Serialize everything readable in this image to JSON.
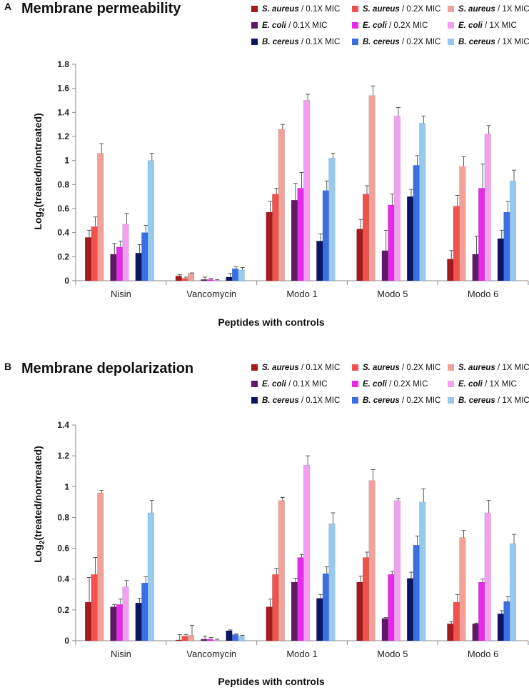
{
  "figure": {
    "series_colors": [
      "#a51a1f",
      "#f0524d",
      "#f2a09a",
      "#5e1a63",
      "#e52be8",
      "#f3a0f2",
      "#0d1560",
      "#3a6fe4",
      "#98c9ef"
    ],
    "legend_org_names": [
      "S. aureus",
      "S. aureus",
      "S. aureus",
      "E. coli",
      "E. coli",
      "E. coli",
      "B. cereus",
      "B. cereus",
      "B. cereus"
    ],
    "legend_dose_suffixes": [
      " / 0.1X MIC",
      " / 0.2X MIC",
      " / 1X MIC",
      " / 0.1X MIC",
      " / 0.2X MIC",
      " / 1X MIC",
      " / 0.1X MIC",
      " / 0.2X MIC",
      " / 1X MIC"
    ]
  },
  "chart_data": [
    {
      "type": "bar",
      "panel_label": "A",
      "title": "Membrane permeability",
      "xlabel": "Peptides with controls",
      "ylabel_main": "Log",
      "ylabel_sub": "2",
      "ylabel_rest": "(treated/nontreated)",
      "ylim": [
        0,
        1.8
      ],
      "yticks": [
        "0",
        "0.2",
        "0.4",
        "0.6",
        "0.8",
        "1",
        "1.2",
        "1.4",
        "1.6",
        "1.8"
      ],
      "categories": [
        "Nisin",
        "Vancomycin",
        "Modo 1",
        "Modo 5",
        "Modo 6"
      ],
      "series": [
        {
          "name": "S. aureus / 0.1X MIC",
          "values": [
            0.36,
            0.04,
            0.57,
            0.43,
            0.18
          ],
          "errors": [
            0.06,
            0.01,
            0.09,
            0.08,
            0.07
          ]
        },
        {
          "name": "S. aureus / 0.2X MIC",
          "values": [
            0.45,
            0.02,
            0.72,
            0.72,
            0.62
          ],
          "errors": [
            0.08,
            0.01,
            0.05,
            0.07,
            0.09
          ]
        },
        {
          "name": "S. aureus / 1X MIC",
          "values": [
            1.06,
            0.06,
            1.26,
            1.54,
            0.95
          ],
          "errors": [
            0.08,
            0.005,
            0.04,
            0.08,
            0.08
          ]
        },
        {
          "name": "E. coli / 0.1X MIC",
          "values": [
            0.22,
            0.01,
            0.67,
            0.25,
            0.22
          ],
          "errors": [
            0.09,
            0.02,
            0.14,
            0.17,
            0.15
          ]
        },
        {
          "name": "E. coli / 0.2X MIC",
          "values": [
            0.28,
            0.01,
            0.77,
            0.63,
            0.77
          ],
          "errors": [
            0.05,
            0.01,
            0.13,
            0.09,
            0.2
          ]
        },
        {
          "name": "E. coli / 1X MIC",
          "values": [
            0.47,
            0.005,
            1.5,
            1.37,
            1.22
          ],
          "errors": [
            0.09,
            0.005,
            0.05,
            0.07,
            0.07
          ]
        },
        {
          "name": "B. cereus / 0.1X MIC",
          "values": [
            0.23,
            0.03,
            0.33,
            0.7,
            0.35
          ],
          "errors": [
            0.07,
            0.03,
            0.06,
            0.06,
            0.07
          ]
        },
        {
          "name": "B. cereus / 0.2X MIC",
          "values": [
            0.4,
            0.1,
            0.75,
            0.96,
            0.57
          ],
          "errors": [
            0.06,
            0.015,
            0.08,
            0.08,
            0.09
          ]
        },
        {
          "name": "B. cereus / 1X MIC",
          "values": [
            1.0,
            0.09,
            1.02,
            1.31,
            0.83
          ],
          "errors": [
            0.06,
            0.02,
            0.04,
            0.06,
            0.09
          ]
        }
      ]
    },
    {
      "type": "bar",
      "panel_label": "B",
      "title": "Membrane depolarization",
      "xlabel": "Peptides with controls",
      "ylabel_main": "Log",
      "ylabel_sub": "2",
      "ylabel_rest": "(treated/nontreated)",
      "ylim": [
        0,
        1.4
      ],
      "yticks": [
        "0",
        "0.2",
        "0.4",
        "0.6",
        "0.8",
        "1",
        "1.2",
        "1.4"
      ],
      "categories": [
        "Nisin",
        "Vancomycin",
        "Modo 1",
        "Modo 5",
        "Modo 6"
      ],
      "series": [
        {
          "name": "S. aureus / 0.1X MIC",
          "values": [
            0.25,
            0.005,
            0.22,
            0.38,
            0.11
          ],
          "errors": [
            0.16,
            0.035,
            0.05,
            0.04,
            0.015
          ]
        },
        {
          "name": "S. aureus / 0.2X MIC",
          "values": [
            0.43,
            0.03,
            0.43,
            0.54,
            0.25
          ],
          "errors": [
            0.11,
            0.01,
            0.04,
            0.035,
            0.05
          ]
        },
        {
          "name": "S. aureus / 1X MIC",
          "values": [
            0.96,
            0.035,
            0.91,
            1.04,
            0.67
          ],
          "errors": [
            0.015,
            0.065,
            0.02,
            0.07,
            0.045
          ]
        },
        {
          "name": "E. coli / 0.1X MIC",
          "values": [
            0.22,
            0.01,
            0.38,
            0.145,
            0.11
          ],
          "errors": [
            0.015,
            0.02,
            0.025,
            0.005,
            0.005
          ]
        },
        {
          "name": "E. coli / 0.2X MIC",
          "values": [
            0.235,
            0.01,
            0.54,
            0.43,
            0.38
          ],
          "errors": [
            0.035,
            0.01,
            0.02,
            0.02,
            0.02
          ]
        },
        {
          "name": "E. coli / 1X MIC",
          "values": [
            0.35,
            0.005,
            1.14,
            0.91,
            0.83
          ],
          "errors": [
            0.04,
            0.005,
            0.06,
            0.015,
            0.08
          ]
        },
        {
          "name": "B. cereus / 0.1X MIC",
          "values": [
            0.245,
            0.065,
            0.275,
            0.405,
            0.175
          ],
          "errors": [
            0.03,
            0.005,
            0.025,
            0.04,
            0.02
          ]
        },
        {
          "name": "B. cereus / 0.2X MIC",
          "values": [
            0.375,
            0.04,
            0.435,
            0.62,
            0.255
          ],
          "errors": [
            0.04,
            0.005,
            0.045,
            0.06,
            0.03
          ]
        },
        {
          "name": "B. cereus / 1X MIC",
          "values": [
            0.83,
            0.03,
            0.76,
            0.9,
            0.63
          ],
          "errors": [
            0.08,
            0.005,
            0.07,
            0.085,
            0.06
          ]
        }
      ]
    }
  ]
}
